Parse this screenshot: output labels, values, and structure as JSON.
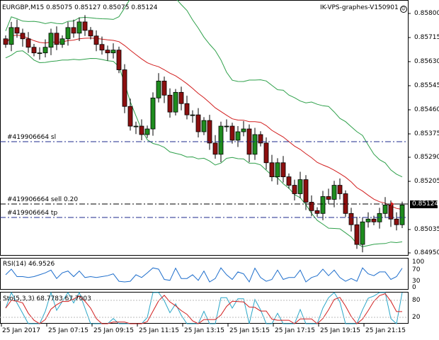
{
  "header": {
    "symbol_info": "EURGBP,M15  0.85075 0.85127 0.85075 0.85124",
    "expert": "IK-VPS-graphes-V150901",
    "smiley": "☺"
  },
  "main": {
    "price_axis": [
      "0.85800",
      "0.85715",
      "0.85630",
      "0.85545",
      "0.85460",
      "0.85375",
      "0.85290",
      "0.85205",
      "0.85035",
      "0.84950"
    ],
    "current_price": "0.85124",
    "order_labels": {
      "sl": "#419906664 sl",
      "sell": "#419906664 sell 0.20",
      "tp": "#419906664 tp"
    }
  },
  "rsi": {
    "label": "RSI(14) 46.9526",
    "levels": [
      "100",
      "70",
      "30",
      "0"
    ]
  },
  "stoch": {
    "label": "Sto(5,3,3) 68.7783 67.7003",
    "levels": [
      "80",
      "20"
    ]
  },
  "time_axis": [
    "25 Jan 2017",
    "25 Jan 07:15",
    "25 Jan 09:15",
    "25 Jan 11:15",
    "25 Jan 13:15",
    "25 Jan 15:15",
    "25 Jan 17:15",
    "25 Jan 19:15",
    "25 Jan 21:15"
  ],
  "colors": {
    "bull": "#1e8c1e",
    "bear": "#8c0f0f",
    "bollinger": "#2ea04a",
    "ma": "#d21e1e",
    "rsi": "#1e6ecc",
    "stoch_main": "#2aa6c8",
    "stoch_signal": "#d21e1e",
    "dashed": "#1e2a8c"
  },
  "chart_data": {
    "type": "candlestick",
    "x_first": "25 Jan 2017",
    "ohlc_close": [
      0.8569,
      0.8575,
      0.8573,
      0.8571,
      0.8568,
      0.8566,
      0.8566,
      0.8568,
      0.8573,
      0.8569,
      0.8571,
      0.8575,
      0.8573,
      0.8577,
      0.8574,
      0.8572,
      0.8569,
      0.8567,
      0.8566,
      0.8567,
      0.856,
      0.8547,
      0.854,
      0.854,
      0.8537,
      0.8539,
      0.855,
      0.8556,
      0.8551,
      0.8545,
      0.8552,
      0.8548,
      0.8544,
      0.8544,
      0.8538,
      0.8542,
      0.8534,
      0.853,
      0.854,
      0.854,
      0.8535,
      0.8538,
      0.8539,
      0.853,
      0.8537,
      0.8534,
      0.8527,
      0.8522,
      0.8527,
      0.8522,
      0.8519,
      0.8516,
      0.8521,
      0.8513,
      0.851,
      0.8509,
      0.8515,
      0.8514,
      0.8519,
      0.8516,
      0.8509,
      0.8505,
      0.8498,
      0.8506,
      0.8507,
      0.8506,
      0.8509,
      0.8512,
      0.8507,
      0.8505,
      0.8512
    ],
    "indicators": [
      "Bollinger Bands",
      "Moving Average",
      "RSI(14)",
      "Stochastic(5,3,3)"
    ]
  }
}
